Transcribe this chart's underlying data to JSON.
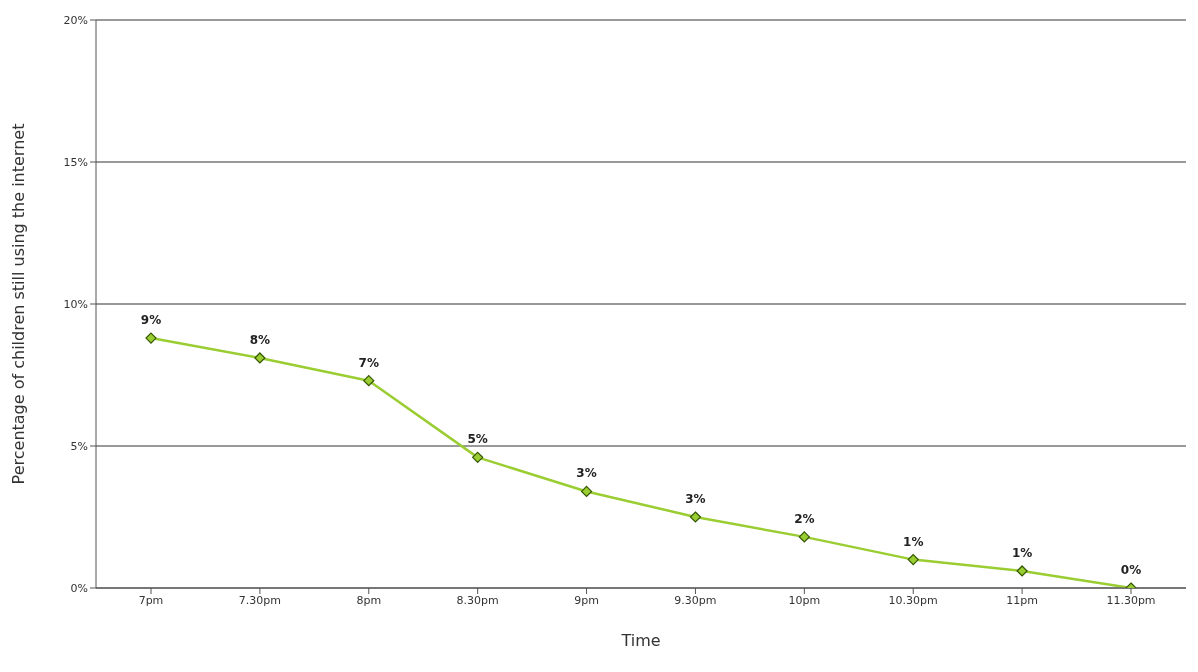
{
  "chart_data": {
    "type": "line",
    "xlabel": "Time",
    "ylabel": "Percentage of children still using the internet",
    "categories": [
      "7pm",
      "7.30pm",
      "8pm",
      "8.30pm",
      "9pm",
      "9.30pm",
      "10pm",
      "10.30pm",
      "11pm",
      "11.30pm"
    ],
    "series": [
      {
        "color": "#9acd32",
        "values": [
          8.8,
          8.1,
          7.3,
          4.6,
          3.4,
          2.5,
          1.8,
          1.0,
          0.6,
          0
        ],
        "value_labels": [
          "9%",
          "8%",
          "7%",
          "5%",
          "3%",
          "3%",
          "2%",
          "1%",
          "1%",
          "0%"
        ]
      }
    ],
    "ylim": [
      0,
      20
    ],
    "yticks": [
      {
        "value": 0,
        "label": "0%"
      },
      {
        "value": 5,
        "label": "5%"
      },
      {
        "value": 10,
        "label": "10%"
      },
      {
        "value": 15,
        "label": "15%"
      },
      {
        "value": 20,
        "label": "20%"
      }
    ],
    "grid": "y",
    "marker": "diamond",
    "line_style": "solid"
  }
}
